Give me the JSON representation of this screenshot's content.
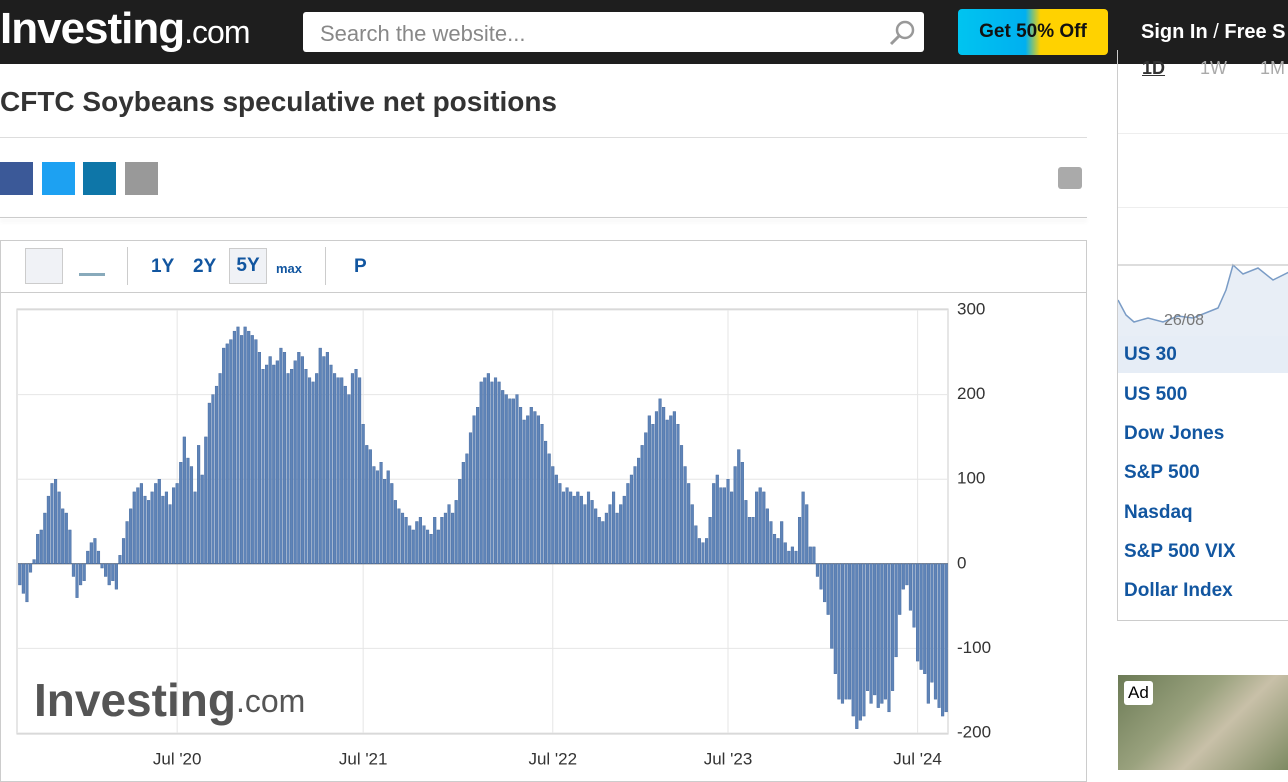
{
  "header": {
    "logo_main": "Investing",
    "logo_suffix": ".com",
    "search_placeholder": "Search the website...",
    "promo_button": "Get 50% Off",
    "sign_in": "Sign In",
    "separator": "/",
    "free": "Free S"
  },
  "title": "CFTC Soybeans speculative net positions",
  "toolbar": {
    "ranges": [
      "1Y",
      "2Y",
      "5Y",
      "max"
    ],
    "p": "P"
  },
  "watermark": {
    "main": "Investing",
    "suffix": ".com"
  },
  "chart_data": {
    "type": "bar",
    "color": "#5f84b8",
    "values": [
      -25,
      -35,
      -45,
      -10,
      5,
      35,
      40,
      60,
      80,
      95,
      100,
      85,
      65,
      60,
      40,
      -15,
      -40,
      -25,
      -20,
      15,
      25,
      30,
      15,
      -5,
      -15,
      -25,
      -20,
      -30,
      10,
      30,
      50,
      65,
      85,
      90,
      95,
      80,
      75,
      85,
      95,
      100,
      80,
      85,
      70,
      90,
      95,
      120,
      150,
      125,
      115,
      85,
      140,
      105,
      150,
      190,
      200,
      210,
      225,
      255,
      260,
      265,
      275,
      280,
      270,
      280,
      275,
      270,
      265,
      250,
      230,
      235,
      245,
      235,
      240,
      255,
      250,
      225,
      230,
      240,
      250,
      245,
      230,
      220,
      215,
      225,
      255,
      245,
      250,
      235,
      225,
      220,
      220,
      210,
      200,
      225,
      230,
      220,
      165,
      140,
      135,
      115,
      110,
      120,
      100,
      110,
      95,
      75,
      65,
      60,
      55,
      45,
      40,
      50,
      55,
      45,
      40,
      35,
      55,
      40,
      55,
      60,
      70,
      60,
      75,
      100,
      120,
      130,
      155,
      175,
      185,
      215,
      220,
      225,
      215,
      220,
      215,
      205,
      200,
      195,
      195,
      200,
      185,
      170,
      175,
      185,
      180,
      175,
      165,
      145,
      130,
      115,
      105,
      95,
      85,
      90,
      85,
      80,
      85,
      80,
      70,
      85,
      75,
      65,
      55,
      50,
      60,
      70,
      85,
      60,
      70,
      80,
      95,
      105,
      115,
      125,
      140,
      155,
      175,
      165,
      180,
      195,
      185,
      170,
      175,
      180,
      165,
      140,
      115,
      95,
      70,
      45,
      30,
      25,
      30,
      55,
      95,
      105,
      90,
      90,
      100,
      85,
      115,
      135,
      120,
      75,
      55,
      55,
      85,
      90,
      85,
      65,
      50,
      35,
      30,
      50,
      25,
      15,
      20,
      15,
      55,
      85,
      70,
      20,
      20,
      -15,
      -30,
      -45,
      -60,
      -100,
      -130,
      -160,
      -165,
      -160,
      -160,
      -180,
      -195,
      -185,
      -180,
      -150,
      -165,
      -155,
      -170,
      -165,
      -160,
      -175,
      -150,
      -110,
      -60,
      -30,
      -25,
      -55,
      -75,
      -115,
      -125,
      -130,
      -165,
      -140,
      -160,
      -170,
      -180,
      -175
    ],
    "categories": [
      null,
      null,
      null,
      null,
      null,
      null,
      null,
      null,
      null,
      null,
      null,
      null,
      null,
      null,
      null,
      null,
      null,
      null,
      null,
      null,
      null,
      null,
      null,
      null,
      null,
      null,
      null,
      null,
      null,
      null,
      null,
      null,
      null,
      null,
      null,
      null,
      null,
      null,
      null,
      null,
      null,
      null,
      null,
      null,
      "Jul '20",
      null,
      null,
      null,
      null,
      null,
      null,
      null,
      null,
      null,
      null,
      null,
      null,
      null,
      null,
      null,
      null,
      null,
      null,
      null,
      null,
      null,
      null,
      null,
      null,
      null,
      null,
      null,
      null,
      null,
      null,
      null,
      null,
      null,
      null,
      null,
      null,
      null,
      null,
      null,
      null,
      null,
      null,
      null,
      null,
      null,
      null,
      null,
      null,
      null,
      null,
      null,
      "Jul '21",
      null,
      null,
      null,
      null,
      null,
      null,
      null,
      null,
      null,
      null,
      null,
      null,
      null,
      null,
      null,
      null,
      null,
      null,
      null,
      null,
      null,
      null,
      null,
      null,
      null,
      null,
      null,
      null,
      null,
      null,
      null,
      null,
      null,
      null,
      null,
      null,
      null,
      null,
      null,
      null,
      null,
      null,
      null,
      null,
      null,
      null,
      null,
      null,
      null,
      null,
      null,
      null,
      "Jul '22",
      null,
      null,
      null,
      null,
      null,
      null,
      null,
      null,
      null,
      null,
      null,
      null,
      null,
      null,
      null,
      null,
      null,
      null,
      null,
      null,
      null,
      null,
      null,
      null,
      null,
      null,
      null,
      null,
      null,
      null,
      null,
      null,
      null,
      null,
      null,
      null,
      null,
      null,
      null,
      null,
      null,
      null,
      null,
      null,
      null,
      null,
      null,
      null,
      "Jul '23",
      null,
      null,
      null,
      null,
      null,
      null,
      null,
      null,
      null,
      null,
      null,
      null,
      null,
      null,
      null,
      null,
      null,
      null,
      null,
      null,
      null,
      null,
      null,
      null,
      null,
      null,
      null,
      null,
      null,
      null,
      null,
      null,
      null,
      null,
      null,
      null,
      null,
      null,
      null,
      null,
      null,
      null,
      null,
      null,
      null,
      null,
      null,
      null,
      null,
      null,
      null,
      null,
      "Jul '24",
      null,
      null,
      null,
      null,
      null,
      null,
      null,
      null
    ],
    "ylim": [
      -200,
      300
    ],
    "yticks": [
      -200,
      -100,
      0,
      100,
      200,
      300
    ],
    "grid": true
  },
  "sidebar": {
    "tabs": [
      "1D",
      "1W",
      "1M"
    ],
    "mini_chart_label": "26/08",
    "instruments": [
      "US 30",
      "US 500",
      "Dow Jones",
      "S&P 500",
      "Nasdaq",
      "S&P 500 VIX",
      "Dollar Index"
    ],
    "ad": "Ad"
  }
}
